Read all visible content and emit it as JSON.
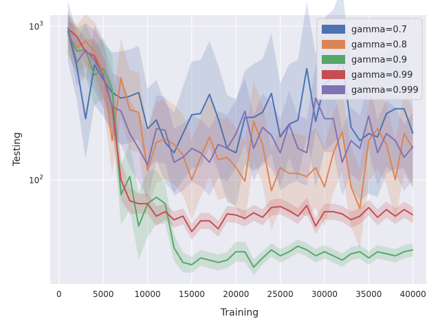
{
  "chart_data": {
    "type": "line",
    "title": "",
    "xlabel": "Training",
    "ylabel": "Testing",
    "yscale": "log",
    "xlim": [
      -1000,
      41500
    ],
    "ylim": [
      21,
      1180
    ],
    "grid": true,
    "legend_position": "top-right",
    "xticks": [
      0,
      5000,
      10000,
      15000,
      20000,
      25000,
      30000,
      35000,
      40000
    ],
    "xtick_labels": [
      "0",
      "5000",
      "10000",
      "15000",
      "20000",
      "25000",
      "30000",
      "35000",
      "40000"
    ],
    "yticks": [
      {
        "value": 100,
        "base": "10",
        "exp": "2"
      },
      {
        "value": 1000,
        "base": "10",
        "exp": "3"
      }
    ],
    "x": [
      1000,
      2000,
      3000,
      4000,
      5000,
      6000,
      7000,
      8000,
      9000,
      10000,
      11000,
      12000,
      13000,
      14000,
      15000,
      16000,
      17000,
      18000,
      19000,
      20000,
      21000,
      22000,
      23000,
      24000,
      25000,
      26000,
      27000,
      28000,
      29000,
      30000,
      31000,
      32000,
      33000,
      34000,
      35000,
      36000,
      37000,
      38000,
      39000,
      40000
    ],
    "series": [
      {
        "name": "gamma=0.7",
        "color": "#4c72b0",
        "values": [
          930,
          550,
          250,
          560,
          450,
          370,
          340,
          350,
          370,
          215,
          245,
          175,
          150,
          200,
          265,
          270,
          360,
          250,
          160,
          150,
          255,
          255,
          275,
          365,
          190,
          230,
          245,
          530,
          240,
          420,
          470,
          600,
          220,
          180,
          200,
          190,
          270,
          290,
          290,
          200
        ],
        "spread": [
          0.45,
          0.5,
          0.6,
          0.6,
          0.55,
          0.6,
          0.7,
          0.7,
          0.7,
          0.6,
          0.6,
          0.6,
          0.6,
          0.7,
          0.8,
          0.8,
          0.8,
          0.8,
          0.8,
          0.8,
          0.7,
          0.8,
          0.8,
          0.9,
          0.8,
          0.9,
          0.9,
          1.0,
          1.0,
          1.0,
          1.0,
          1.1,
          0.9,
          0.9,
          0.9,
          0.9,
          0.9,
          0.9,
          0.9,
          0.8
        ]
      },
      {
        "name": "gamma=0.8",
        "color": "#dd8452",
        "values": [
          880,
          720,
          800,
          680,
          500,
          180,
          460,
          285,
          275,
          115,
          175,
          185,
          170,
          145,
          100,
          140,
          190,
          135,
          140,
          120,
          98,
          240,
          170,
          85,
          120,
          110,
          110,
          105,
          120,
          90,
          150,
          205,
          90,
          65,
          180,
          215,
          170,
          100,
          200,
          160
        ],
        "spread": [
          0.3,
          0.35,
          0.4,
          0.45,
          0.5,
          0.5,
          0.6,
          0.6,
          0.6,
          0.6,
          0.6,
          0.6,
          0.6,
          0.6,
          0.6,
          0.6,
          0.6,
          0.6,
          0.6,
          0.6,
          0.6,
          0.6,
          0.6,
          0.6,
          0.6,
          0.6,
          0.6,
          0.6,
          0.6,
          0.6,
          0.6,
          0.6,
          0.6,
          0.6,
          0.6,
          0.6,
          0.6,
          0.6,
          0.6,
          0.6
        ]
      },
      {
        "name": "gamma=0.9",
        "color": "#55a868",
        "values": [
          900,
          690,
          700,
          480,
          530,
          390,
          80,
          105,
          50,
          70,
          77,
          70,
          36,
          29,
          28,
          31,
          30,
          29,
          30,
          34,
          34,
          27,
          31,
          35,
          32,
          34,
          37,
          35,
          32,
          34,
          32,
          30,
          33,
          34,
          31,
          34,
          33,
          32,
          34,
          35
        ],
        "spread": [
          0.3,
          0.35,
          0.4,
          0.45,
          0.45,
          0.5,
          0.45,
          0.5,
          0.5,
          0.5,
          0.4,
          0.3,
          0.2,
          0.15,
          0.12,
          0.12,
          0.12,
          0.12,
          0.12,
          0.15,
          0.15,
          0.12,
          0.1,
          0.1,
          0.1,
          0.1,
          0.1,
          0.1,
          0.1,
          0.1,
          0.1,
          0.1,
          0.1,
          0.1,
          0.1,
          0.1,
          0.1,
          0.1,
          0.1,
          0.1
        ]
      },
      {
        "name": "gamma=0.99",
        "color": "#c44e52",
        "values": [
          960,
          860,
          680,
          640,
          470,
          300,
          100,
          73,
          70,
          70,
          58,
          62,
          55,
          58,
          46,
          54,
          54,
          48,
          60,
          59,
          56,
          61,
          57,
          66,
          67,
          63,
          58,
          68,
          50,
          62,
          62,
          60,
          55,
          58,
          66,
          57,
          64,
          58,
          64,
          59
        ],
        "spread": [
          0.12,
          0.15,
          0.2,
          0.25,
          0.3,
          0.35,
          0.3,
          0.2,
          0.15,
          0.15,
          0.15,
          0.12,
          0.12,
          0.12,
          0.12,
          0.12,
          0.12,
          0.12,
          0.12,
          0.12,
          0.12,
          0.12,
          0.12,
          0.12,
          0.12,
          0.12,
          0.12,
          0.12,
          0.12,
          0.12,
          0.12,
          0.12,
          0.12,
          0.12,
          0.12,
          0.12,
          0.12,
          0.12,
          0.12,
          0.12
        ]
      },
      {
        "name": "gamma=0.999",
        "color": "#8172b3",
        "values": [
          980,
          580,
          700,
          600,
          480,
          300,
          280,
          200,
          160,
          125,
          215,
          210,
          130,
          140,
          160,
          150,
          130,
          170,
          160,
          200,
          280,
          160,
          220,
          195,
          150,
          230,
          160,
          150,
          340,
          250,
          250,
          130,
          180,
          160,
          260,
          150,
          200,
          180,
          140,
          165
        ],
        "spread": [
          0.25,
          0.35,
          0.4,
          0.45,
          0.5,
          0.5,
          0.5,
          0.5,
          0.5,
          0.5,
          0.5,
          0.5,
          0.5,
          0.5,
          0.5,
          0.5,
          0.5,
          0.5,
          0.5,
          0.5,
          0.5,
          0.5,
          0.5,
          0.5,
          0.5,
          0.5,
          0.5,
          0.5,
          0.5,
          0.5,
          0.5,
          0.5,
          0.5,
          0.5,
          0.5,
          0.5,
          0.5,
          0.5,
          0.5,
          0.5
        ]
      }
    ]
  }
}
